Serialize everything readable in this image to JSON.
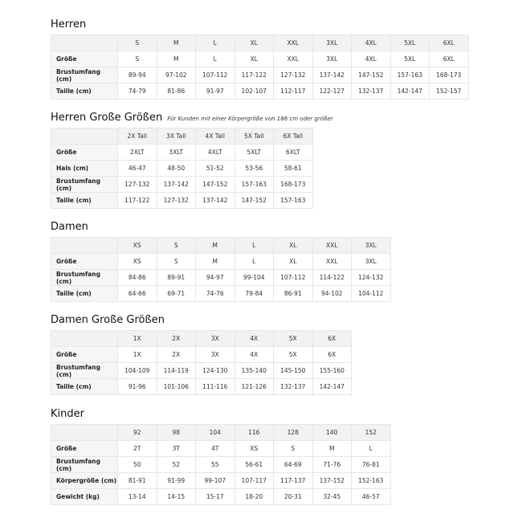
{
  "tables": [
    {
      "id": "herren",
      "title": "Herren",
      "note": "",
      "header": [
        "S",
        "M",
        "L",
        "XL",
        "XXL",
        "3XL",
        "4XL",
        "5XL",
        "6XL"
      ],
      "rows": [
        {
          "label": "Größe",
          "values": [
            "S",
            "M",
            "L",
            "XL",
            "XXL",
            "3XL",
            "4XL",
            "5XL",
            "6XL"
          ]
        },
        {
          "label": "Brustumfang (cm)",
          "values": [
            "89-94",
            "97-102",
            "107-112",
            "117-122",
            "127-132",
            "137-142",
            "147-152",
            "157-163",
            "168-173"
          ]
        },
        {
          "label": "Taille (cm)",
          "values": [
            "74-79",
            "81-86",
            "91-97",
            "102-107",
            "112-117",
            "122-127",
            "132-137",
            "142-147",
            "152-157"
          ]
        }
      ]
    },
    {
      "id": "herren-grosse-groessen",
      "title": "Herren Große Größen",
      "note": "Für Kunden mit einer Körpergröße von 186 cm oder größer",
      "header": [
        "2X Tall",
        "3X Tall",
        "4X Tall",
        "5X Tall",
        "6X Tall"
      ],
      "rows": [
        {
          "label": "Größe",
          "values": [
            "2XLT",
            "3XLT",
            "4XLT",
            "5XLT",
            "6XLT"
          ]
        },
        {
          "label": "Hals (cm)",
          "values": [
            "46-47",
            "48-50",
            "51-52",
            "53-56",
            "58-61"
          ]
        },
        {
          "label": "Brustumfang (cm)",
          "values": [
            "127-132",
            "137-142",
            "147-152",
            "157-163",
            "168-173"
          ]
        },
        {
          "label": "Taille (cm)",
          "values": [
            "117-122",
            "127-132",
            "137-142",
            "147-152",
            "157-163"
          ]
        }
      ]
    },
    {
      "id": "damen",
      "title": "Damen",
      "note": "",
      "header": [
        "XS",
        "S",
        "M",
        "L",
        "XL",
        "XXL",
        "3XL"
      ],
      "rows": [
        {
          "label": "Größe",
          "values": [
            "XS",
            "S",
            "M",
            "L",
            "XL",
            "XXL",
            "3XL"
          ]
        },
        {
          "label": "Brustumfang (cm)",
          "values": [
            "84-86",
            "89-91",
            "94-97",
            "99-104",
            "107-112",
            "114-122",
            "124-132"
          ]
        },
        {
          "label": "Taille (cm)",
          "values": [
            "64-66",
            "69-71",
            "74-76",
            "79-84",
            "86-91",
            "94-102",
            "104-112"
          ]
        }
      ]
    },
    {
      "id": "damen-grosse-groessen",
      "title": "Damen Große Größen",
      "note": "",
      "header": [
        "1X",
        "2X",
        "3X",
        "4X",
        "5X",
        "6X"
      ],
      "rows": [
        {
          "label": "Größe",
          "values": [
            "1X",
            "2X",
            "3X",
            "4X",
            "5X",
            "6X"
          ]
        },
        {
          "label": "Brustumfang (cm)",
          "values": [
            "104-109",
            "114-119",
            "124-130",
            "135-140",
            "145-150",
            "155-160"
          ]
        },
        {
          "label": "Taille (cm)",
          "values": [
            "91-96",
            "101-106",
            "111-116",
            "121-126",
            "132-137",
            "142-147"
          ]
        }
      ]
    },
    {
      "id": "kinder",
      "title": "Kinder",
      "note": "",
      "header": [
        "92",
        "98",
        "104",
        "116",
        "128",
        "140",
        "152"
      ],
      "rows": [
        {
          "label": "Größe",
          "values": [
            "2T",
            "3T",
            "4T",
            "XS",
            "S",
            "M",
            "L"
          ]
        },
        {
          "label": "Brustumfang (cm)",
          "values": [
            "50",
            "52",
            "55",
            "56-61",
            "64-69",
            "71-76",
            "76-81"
          ]
        },
        {
          "label": "Körpergröße (cm)",
          "values": [
            "81-91",
            "91-99",
            "99-107",
            "107-117",
            "117-137",
            "137-152",
            "152-163"
          ]
        },
        {
          "label": "Gewicht (kg)",
          "values": [
            "13-14",
            "14-15",
            "15-17",
            "18-20",
            "20-31",
            "32-45",
            "46-57"
          ]
        }
      ]
    }
  ]
}
